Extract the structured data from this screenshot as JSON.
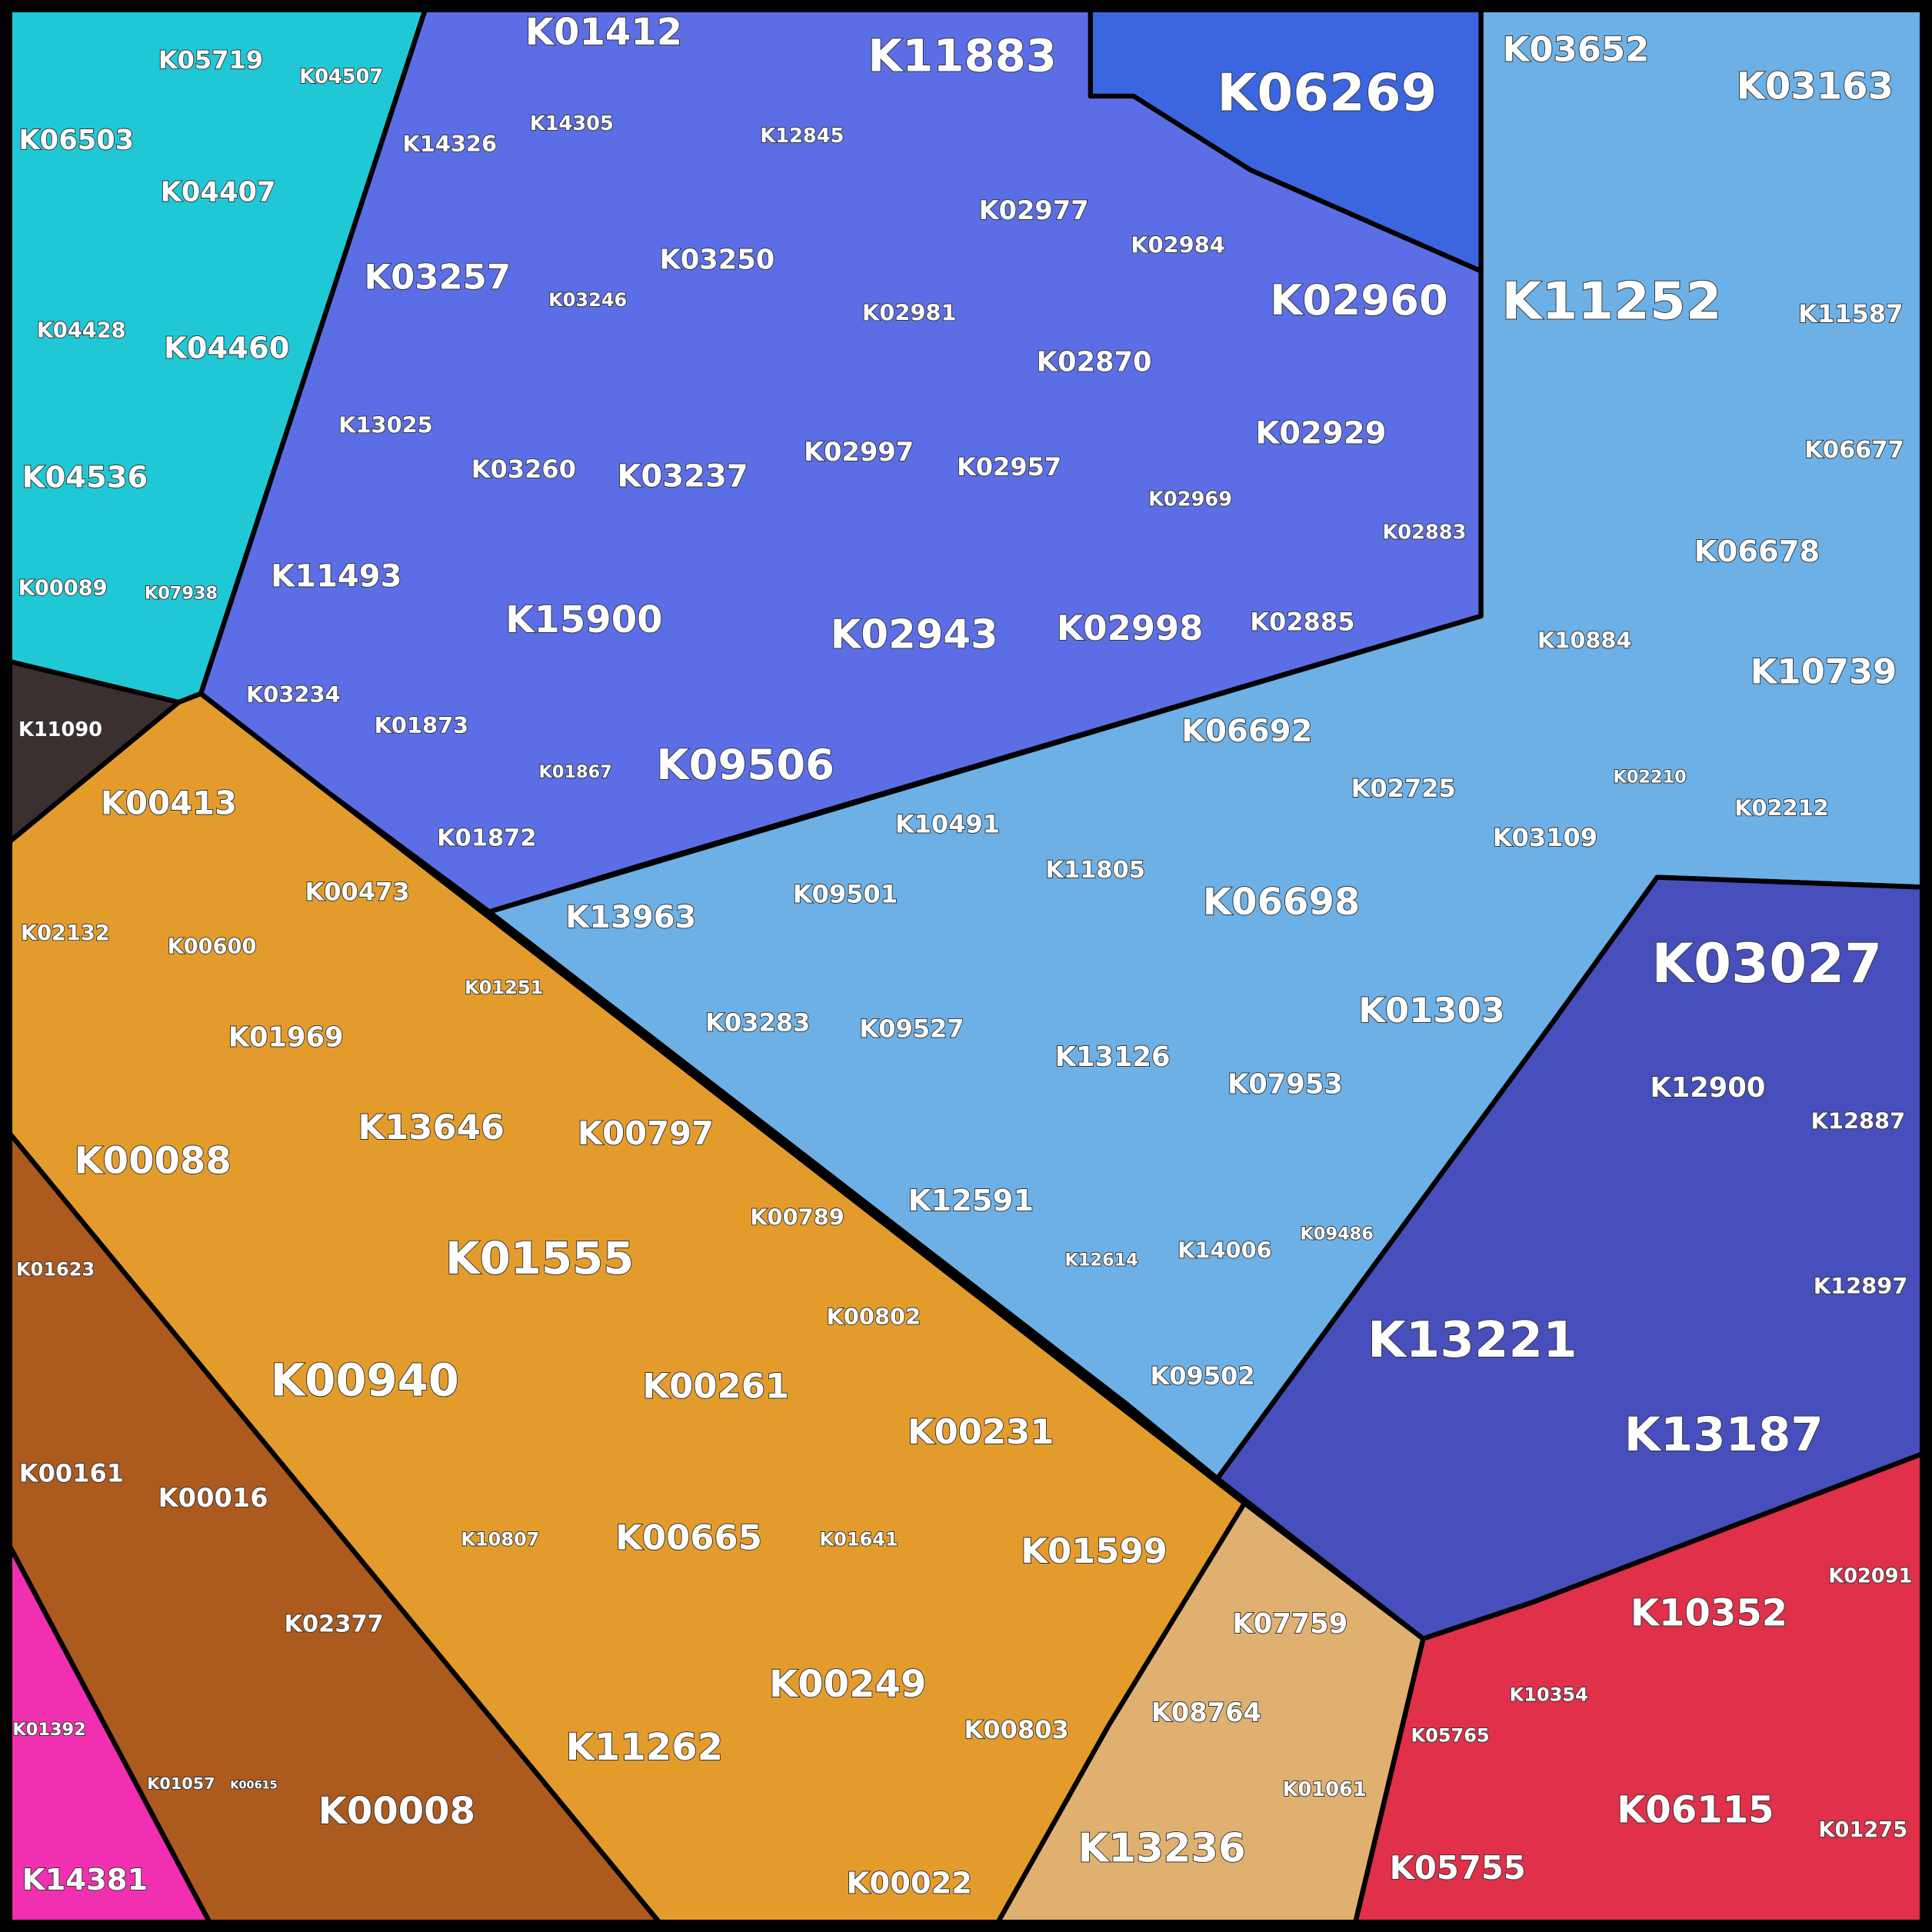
{
  "labels": [
    "K05719",
    "K04507",
    "K06503",
    "K04407",
    "K04428",
    "K04460",
    "K04536",
    "K00089",
    "K07938",
    "K11090",
    "K01412",
    "K11883",
    "K06269",
    "K14326",
    "K14305",
    "K12845",
    "K03257",
    "K03246",
    "K03250",
    "K02977",
    "K02984",
    "K02981",
    "K02960",
    "K02870",
    "K13025",
    "K03260",
    "K03237",
    "K02997",
    "K02957",
    "K02929",
    "K02969",
    "K02883",
    "K11493",
    "K15900",
    "K02943",
    "K02998",
    "K02885",
    "K03234",
    "K01873",
    "K01867",
    "K09506",
    "K01872",
    "K03652",
    "K03163",
    "K11252",
    "K11587",
    "K06677",
    "K06678",
    "K10884",
    "K10739",
    "K02210",
    "K02212",
    "K06692",
    "K02725",
    "K10491",
    "K11805",
    "K03109",
    "K13963",
    "K09501",
    "K06698",
    "K03283",
    "K09527",
    "K01303",
    "K03027",
    "K13126",
    "K07953",
    "K12900",
    "K12887",
    "K12591",
    "K12614",
    "K14006",
    "K09486",
    "K12897",
    "K13221",
    "K09502",
    "K13187",
    "K00413",
    "K02132",
    "K00473",
    "K00600",
    "K01251",
    "K01969",
    "K13646",
    "K00797",
    "K00088",
    "K00789",
    "K01623",
    "K01555",
    "K00802",
    "K00940",
    "K00261",
    "K00231",
    "K00161",
    "K00016",
    "K00665",
    "K01641",
    "K10807",
    "K01599",
    "K02377",
    "K07759",
    "K10352",
    "K02091",
    "K00249",
    "K08764",
    "K01392",
    "K11262",
    "K00803",
    "K10354",
    "K05765",
    "K01057",
    "K00615",
    "K00008",
    "K01061",
    "K06115",
    "K01275",
    "K13236",
    "K05755",
    "K00022",
    "K14381"
  ]
}
